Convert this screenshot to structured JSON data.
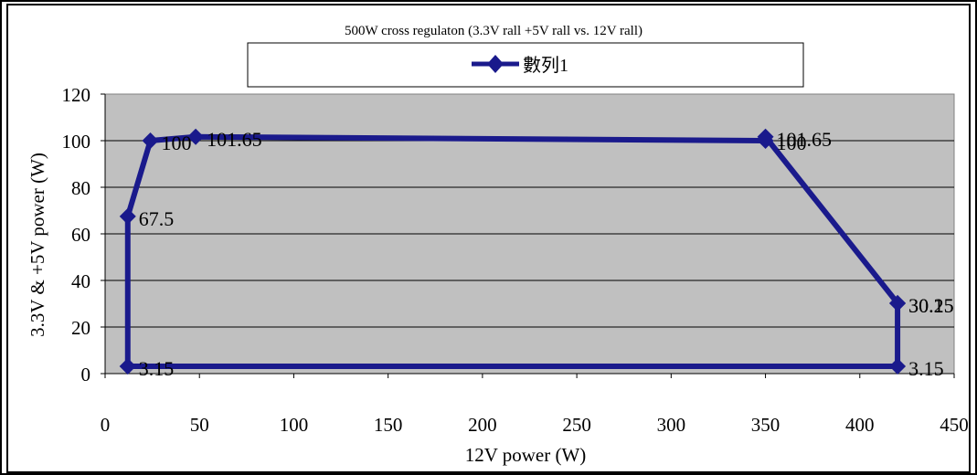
{
  "chart_data": {
    "type": "scatter",
    "title": "500W cross regulaton (3.3V rall +5V rall vs. 12V rall)",
    "xlabel": "12V power (W)",
    "ylabel": "3.3V & +5V power (W)",
    "xlim": [
      0,
      450
    ],
    "ylim": [
      0,
      120
    ],
    "x_ticks": [
      "0",
      "50",
      "100",
      "150",
      "200",
      "250",
      "300",
      "350",
      "400",
      "450"
    ],
    "y_ticks": [
      "0",
      "20",
      "40",
      "60",
      "80",
      "100",
      "120"
    ],
    "grid": "horizontal",
    "legend_position": "top",
    "series": [
      {
        "name": "數列1",
        "color": "#1a1a8c",
        "marker": "diamond",
        "points": [
          {
            "x": 12,
            "y": 3.15,
            "label": "3.15"
          },
          {
            "x": 12,
            "y": 67.5,
            "label": "67.5"
          },
          {
            "x": 24,
            "y": 100,
            "label": "100"
          },
          {
            "x": 48,
            "y": 101.65,
            "label": "101.65"
          },
          {
            "x": 350,
            "y": 100,
            "label": "100"
          },
          {
            "x": 350,
            "y": 101.65,
            "label": "101.65"
          },
          {
            "x": 420,
            "y": 30.25,
            "label": "30.25"
          },
          {
            "x": 420,
            "y": 30.15,
            "label": "30.15"
          },
          {
            "x": 420,
            "y": 3.15,
            "label": "3.15"
          },
          {
            "x": 12,
            "y": 3.15,
            "label": ""
          }
        ]
      }
    ]
  }
}
